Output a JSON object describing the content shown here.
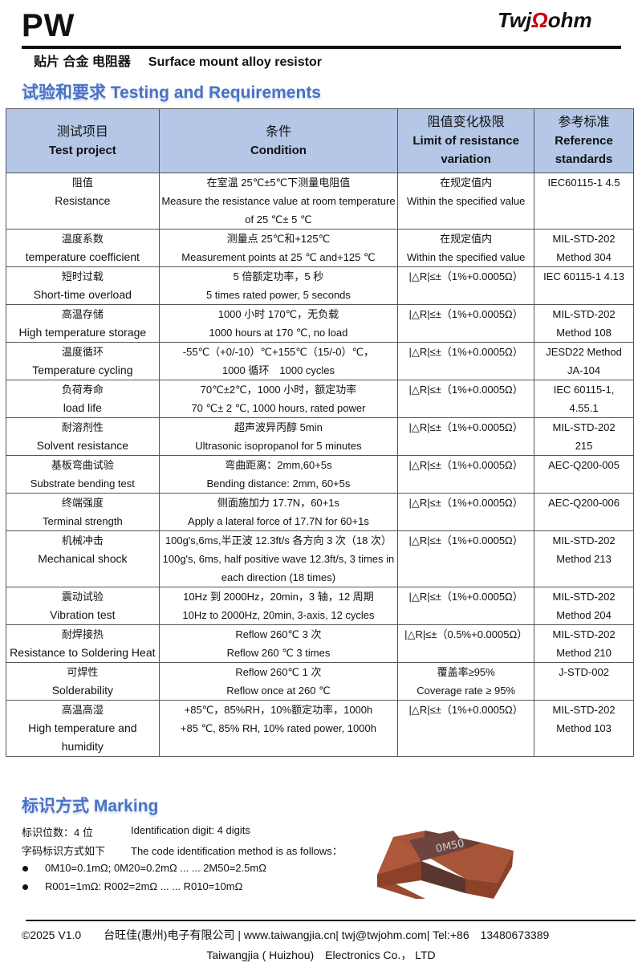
{
  "header": {
    "title": "PW",
    "logo": "TwjΩohm",
    "subtitle_cn": "贴片 合金 电阻器",
    "subtitle_en": "Surface mount alloy resistor"
  },
  "section1": "试验和要求  Testing and Requirements",
  "table": {
    "headers": [
      {
        "cn": "测试项目",
        "en": "Test project"
      },
      {
        "cn": "条件",
        "en": "Condition"
      },
      {
        "cn": "阻值变化极限",
        "en": "Limit of resistance variation"
      },
      {
        "cn": "参考标准",
        "en": "Reference standards"
      }
    ],
    "rows": [
      {
        "cn": "阻值",
        "en": "Resistance",
        "cond": [
          "在室温 25℃±5℃下测量电阻值",
          "Measure the resistance value at room temperature of 25 ℃± 5 ℃"
        ],
        "limit": [
          "在规定值内",
          "Within the specified value"
        ],
        "std": "IEC60115-1 4.5"
      },
      {
        "cn": "温度系数",
        "en": "temperature coefficient",
        "cond": [
          "测量点 25℃和+125℃",
          "Measurement points at 25 ℃ and+125 ℃"
        ],
        "limit": [
          "在规定值内",
          "Within the specified value"
        ],
        "std": "MIL-STD-202 Method 304"
      },
      {
        "cn": "短时过载",
        "en": "Short-time overload",
        "cond": [
          "5 倍额定功率，5 秒",
          "5 times rated power, 5 seconds"
        ],
        "limit": [
          "|△R|≤±（1%+0.0005Ω）"
        ],
        "std": "IEC 60115-1 4.13"
      },
      {
        "cn": "高温存储",
        "en": "High temperature storage",
        "cond": [
          "1000 小时 170℃，无负载",
          "1000 hours at 170 ℃, no load"
        ],
        "limit": [
          "|△R|≤±（1%+0.0005Ω）"
        ],
        "std": "MIL-STD-202 Method 108"
      },
      {
        "cn": "温度循环",
        "en": "Temperature cycling",
        "cond": [
          "-55℃（+0/-10）℃+155℃（15/-0）℃，",
          "1000 循环　1000 cycles"
        ],
        "limit": [
          "|△R|≤±（1%+0.0005Ω）"
        ],
        "std": "JESD22 Method JA-104"
      },
      {
        "cn": "负荷寿命",
        "en": "load life",
        "cond": [
          "70℃±2℃，1000 小时，额定功率",
          "70 ℃± 2 ℃, 1000 hours, rated power"
        ],
        "limit": [
          "|△R|≤±（1%+0.0005Ω）"
        ],
        "std": "IEC 60115-1, 4.55.1"
      },
      {
        "cn": "耐溶剂性",
        "en": "Solvent resistance",
        "cond": [
          "超声波异丙醇 5min",
          "Ultrasonic isopropanol for 5 minutes"
        ],
        "limit": [
          "|△R|≤±（1%+0.0005Ω）"
        ],
        "std": "MIL-STD-202 215"
      },
      {
        "cn": "基板弯曲试验",
        "en": "Substrate bending test",
        "cond": [
          "弯曲距离：2mm,60+5s",
          "Bending distance: 2mm, 60+5s"
        ],
        "limit": [
          "|△R|≤±（1%+0.0005Ω）"
        ],
        "std": "AEC-Q200-005",
        "small": true
      },
      {
        "cn": "终端强度",
        "en": "Terminal strength",
        "cond": [
          "侧面施加力 17.7N，60+1s",
          "Apply a lateral force of 17.7N for 60+1s"
        ],
        "limit": [
          "|△R|≤±（1%+0.0005Ω）"
        ],
        "std": "AEC-Q200-006",
        "small": true
      },
      {
        "cn": "机械冲击",
        "en": "Mechanical shock",
        "cond": [
          "100g's,6ms,半正波 12.3ft/s 各方向 3 次（18 次）",
          "100g's, 6ms, half positive wave 12.3ft/s, 3 times in each direction (18 times)"
        ],
        "limit": [
          "|△R|≤±（1%+0.0005Ω）"
        ],
        "std": "MIL-STD-202 Method 213"
      },
      {
        "cn": "震动试验",
        "en": "Vibration test",
        "cond": [
          "10Hz 到 2000Hz，20min，3 轴，12 周期",
          "10Hz to 2000Hz, 20min, 3-axis, 12 cycles"
        ],
        "limit": [
          "|△R|≤±（1%+0.0005Ω）"
        ],
        "std": "MIL-STD-202 Method 204"
      },
      {
        "cn": "耐焊接热",
        "en": "Resistance to Soldering Heat",
        "cond": [
          "Reflow 260℃  3 次",
          "Reflow 260 ℃ 3 times"
        ],
        "limit": [
          "|△R|≤±（0.5%+0.0005Ω）"
        ],
        "std": "MIL-STD-202 Method 210"
      },
      {
        "cn": "可焊性",
        "en": "Solderability",
        "cond": [
          "Reflow 260℃  1 次",
          "Reflow once at 260 ℃"
        ],
        "limit": [
          "覆盖率≥95%",
          "Coverage rate ≥ 95%"
        ],
        "std": "J-STD-002"
      },
      {
        "cn": "高温高湿",
        "en": "High temperature and humidity",
        "cond": [
          "+85℃，85%RH，10%额定功率，1000h",
          "+85 ℃, 85% RH, 10% rated power, 1000h"
        ],
        "limit": [
          "|△R|≤±（1%+0.0005Ω）"
        ],
        "std": "MIL-STD-202 Method 103"
      }
    ]
  },
  "section2": "标识方式  Marking",
  "marking": {
    "l1_cn": "标识位数：4  位",
    "l1_en": "Identification digit: 4 digits",
    "l2_cn": "字码标识方式如下",
    "l2_en": "The code identification method is as follows：",
    "b1": "0M10=0.1mΩ; 0M20=0.2mΩ ... ... 2M50=2.5mΩ",
    "b2": "R001=1mΩ: R002=2mΩ ... ... R010=10mΩ",
    "chip_label": "0M50"
  },
  "footer": {
    "line1": "©2025 V1.0　　台旺佳(惠州)电子有限公司 | www.taiwangjia.cn| twj@twjohm.com| Tel:+86　13480673389",
    "line2": "Taiwangjia ( Huizhou)　Electronics Co.，  LTD"
  }
}
